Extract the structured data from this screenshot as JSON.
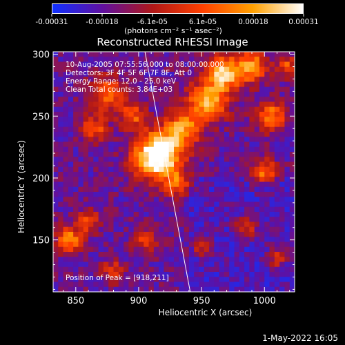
{
  "colorbar": {
    "ticks": [
      "-0.00031",
      "-0.00018",
      "-6.1e-05",
      "6.1e-05",
      "0.00018",
      "0.00031"
    ],
    "unit_label": "(photons cm⁻² s⁻¹ asec⁻²)"
  },
  "chart_data": {
    "type": "heatmap",
    "title": "Reconstructed RHESSI Image",
    "xlabel": "Heliocentric X (arcsec)",
    "ylabel": "Heliocentric Y (arcsec)",
    "xlim": [
      832,
      1024
    ],
    "ylim": [
      108,
      302
    ],
    "xticks": [
      "850",
      "900",
      "950",
      "1000"
    ],
    "yticks": [
      "150",
      "200",
      "250",
      "300"
    ],
    "xtick_values": [
      850,
      900,
      950,
      1000
    ],
    "ytick_values": [
      150,
      200,
      250,
      300
    ],
    "peak": {
      "x": 918,
      "y": 211
    },
    "limb_line": {
      "x_top": 905,
      "x_bottom": 941
    },
    "colormap": [
      "#1030ff",
      "#6010a0",
      "#b01818",
      "#ff4000",
      "#ffa000",
      "#ffffff"
    ]
  },
  "info_lines": [
    "10-Aug-2005 07:55:56.000 to 08:00:00.000",
    "Detectors: 3F 4F 5F 6F 7F 8F, Att 0",
    "Energy Range: 12.0 - 25.0 keV",
    "Clean     Total counts: 3.84E+03"
  ],
  "peak_label": "Position of Peak = [918,211]",
  "footer_date": "1-May-2022 16:05"
}
